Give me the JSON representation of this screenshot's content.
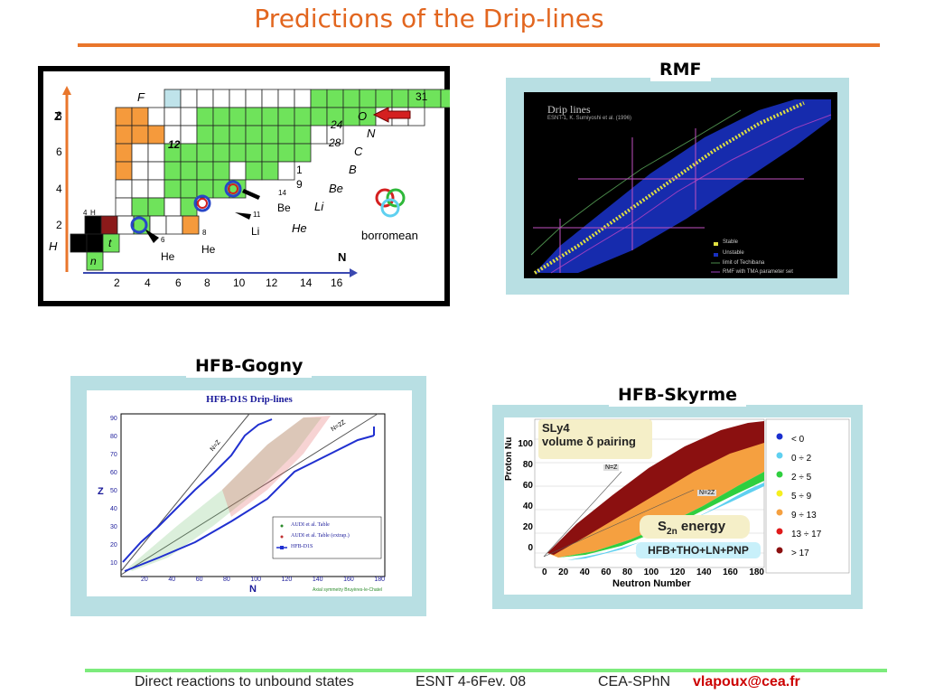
{
  "slide": {
    "title": "Predictions of the Drip-lines"
  },
  "chart_panel": {
    "z_axis": "Z",
    "n_axis": "N",
    "z_ticks": [
      "8",
      "6",
      "4",
      "2"
    ],
    "n_ticks": [
      "2",
      "4",
      "6",
      "8",
      "10",
      "12",
      "14",
      "16"
    ],
    "element_labels": {
      "F": "F",
      "O": "O",
      "N": "N",
      "C": "C",
      "B": "B",
      "Be": "Be",
      "Li": "Li",
      "He": "He",
      "H": "H",
      "t": "t",
      "n": "n"
    },
    "nucleus_labels": [
      "31",
      "24",
      "28",
      "1",
      "9",
      "12",
      "14",
      "Be",
      "11",
      "Li",
      "8",
      "He",
      "6",
      "He",
      "4",
      "H"
    ],
    "borromean_label": "borromean",
    "colors": {
      "green": "#6fe35b",
      "orange": "#f59a3c",
      "white": "#ffffff",
      "lightblue": "#bfe3ea",
      "dark": "#000000",
      "darkred": "#8b1a1a"
    }
  },
  "rmf": {
    "label": "RMF",
    "plot_title": "Drip lines",
    "plot_subtitle": "ESNT-1, K. Sumiyoshi et al. (1996)",
    "legend": [
      "Stable",
      "Unstable",
      "limit of Techibana",
      "RMF with TMA parameter set"
    ]
  },
  "gogny": {
    "label": "HFB-Gogny",
    "plot_title": "HFB-D1S Drip-lines",
    "ylabel": "Z",
    "xlabel": "N",
    "y_ticks": [
      "90",
      "80",
      "70",
      "60",
      "50",
      "40",
      "30",
      "20",
      "10"
    ],
    "x_ticks": [
      "20",
      "40",
      "60",
      "80",
      "100",
      "120",
      "140",
      "160",
      "180"
    ],
    "line_labels": [
      "N=Z",
      "N=2Z"
    ],
    "legend": [
      "AUDI et al. Table",
      "AUDI et al. Table (extrap.)",
      "HFB-D1S"
    ],
    "footnote": "Axial symmetry Bruyères-le-Chatel"
  },
  "skyrme": {
    "label": "HFB-Skyrme",
    "sly4": "SLy4",
    "pairing": "volume δ pairing",
    "s2n": "S",
    "s2n_sub": "2n",
    "s2n_rest": "energy",
    "method": "HFB+THO+LN+PNP",
    "ylabel": "Proton Nu",
    "xlabel": "Neutron Number",
    "y_ticks": [
      "100",
      "80",
      "60",
      "40",
      "20",
      "0"
    ],
    "x_ticks": [
      "0",
      "20",
      "40",
      "60",
      "80",
      "100",
      "120",
      "140",
      "160",
      "180"
    ],
    "line_labels": [
      "N=Z",
      "N=2Z"
    ],
    "legend": [
      {
        "label": "< 0",
        "color": "#1a2fcf"
      },
      {
        "label": "0 ÷ 2",
        "color": "#5fd0f0"
      },
      {
        "label": "2 ÷ 5",
        "color": "#2fcf3f"
      },
      {
        "label": "5 ÷ 9",
        "color": "#f5ef1f"
      },
      {
        "label": "9 ÷ 13",
        "color": "#f5a040"
      },
      {
        "label": "13 ÷ 17",
        "color": "#e01a1a"
      },
      {
        "label": "> 17",
        "color": "#8b1010"
      }
    ]
  },
  "footer": {
    "topic": "Direct reactions to unbound states",
    "event": "ESNT 4-6Fev. 08",
    "org": "CEA-SPhN",
    "email": "vlapoux@cea.fr"
  }
}
